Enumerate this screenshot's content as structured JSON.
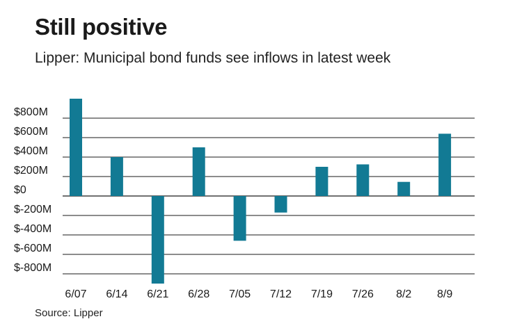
{
  "header": {
    "title": "Still positive",
    "subtitle": "Lipper: Municipal bond funds see inflows in latest week"
  },
  "footer": {
    "source": "Source: Lipper"
  },
  "colors": {
    "bar": "#127a94",
    "grid": "#1a1a1a",
    "text": "#1a1a1a"
  },
  "chart_data": {
    "type": "bar",
    "title": "Still positive",
    "subtitle": "Lipper: Municipal bond funds see inflows in latest week",
    "xlabel": "",
    "ylabel": "",
    "categories": [
      "6/07",
      "6/14",
      "6/21",
      "6/28",
      "7/05",
      "7/12",
      "7/19",
      "7/26",
      "8/2",
      "8/9"
    ],
    "values": [
      1000,
      400,
      -900,
      500,
      -460,
      -170,
      300,
      325,
      145,
      640
    ],
    "unit": "millions of dollars",
    "ylim": [
      -900,
      1000
    ],
    "yticks": [
      800,
      600,
      400,
      200,
      0,
      -200,
      -400,
      -600,
      -800
    ],
    "ytick_labels": [
      "$800M",
      "$600M",
      "$400M",
      "$200M",
      "$0",
      "$-200M",
      "$-400M",
      "$-600M",
      "$-800M"
    ],
    "grid": true
  }
}
